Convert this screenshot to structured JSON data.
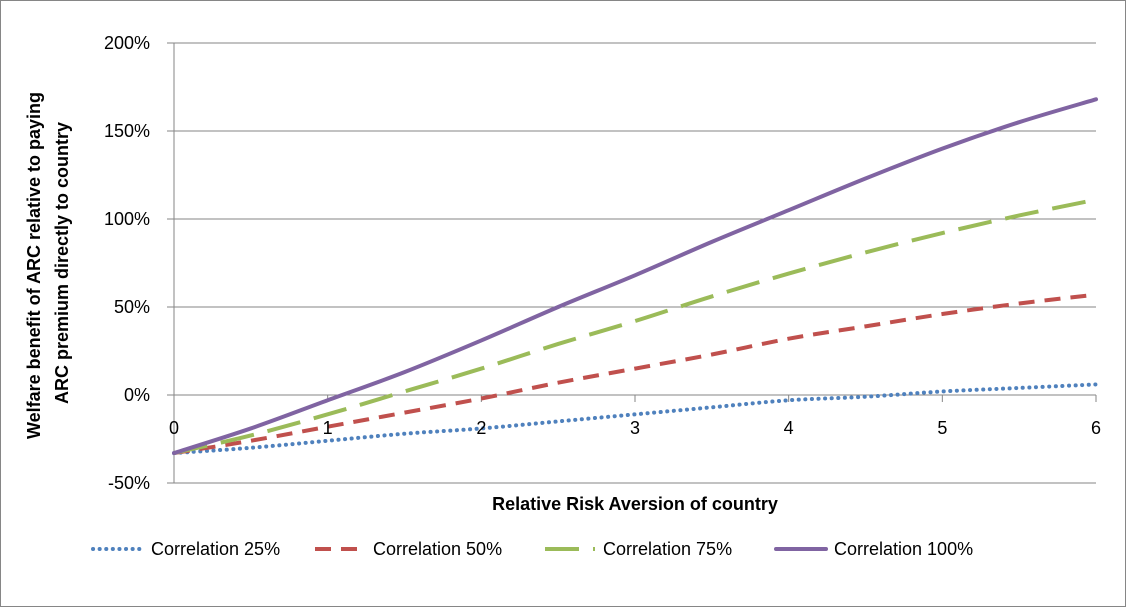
{
  "chart_data": {
    "type": "line",
    "title": "",
    "xlabel": "Relative Risk Aversion of country",
    "ylabel_lines": [
      "Welfare benefit of ARC relative to paying",
      "ARC premium directly to country"
    ],
    "xlim": [
      0,
      6
    ],
    "ylim": [
      -0.5,
      2.0
    ],
    "x_ticks": [
      0,
      1,
      2,
      3,
      4,
      5,
      6
    ],
    "y_ticks": [
      2.0,
      1.5,
      1.0,
      0.5,
      0.0,
      -0.5
    ],
    "y_tick_labels": [
      "200%",
      "150%",
      "100%",
      "50%",
      "0%",
      "-50%"
    ],
    "grid": "horizontal",
    "legend_position": "bottom",
    "x": [
      0,
      0.5,
      1,
      1.5,
      2,
      2.5,
      3,
      3.5,
      4,
      4.5,
      5,
      5.5,
      6
    ],
    "series": [
      {
        "name": "Correlation 25%",
        "color": "#4F81BD",
        "dash": "dotted",
        "values": [
          -0.33,
          -0.3,
          -0.26,
          -0.22,
          -0.19,
          -0.15,
          -0.11,
          -0.07,
          -0.03,
          -0.01,
          0.02,
          0.04,
          0.06
        ]
      },
      {
        "name": "Correlation 50%",
        "color": "#C0504D",
        "dash": "dashed",
        "values": [
          -0.33,
          -0.26,
          -0.18,
          -0.1,
          -0.02,
          0.07,
          0.15,
          0.23,
          0.32,
          0.39,
          0.46,
          0.52,
          0.57
        ]
      },
      {
        "name": "Correlation 75%",
        "color": "#9BBB59",
        "dash": "longdash",
        "values": [
          -0.33,
          -0.23,
          -0.11,
          0.02,
          0.15,
          0.29,
          0.42,
          0.56,
          0.69,
          0.81,
          0.92,
          1.02,
          1.11
        ]
      },
      {
        "name": "Correlation 100%",
        "color": "#8064A2",
        "dash": "solid",
        "values": [
          -0.33,
          -0.19,
          -0.03,
          0.13,
          0.31,
          0.5,
          0.68,
          0.87,
          1.05,
          1.23,
          1.4,
          1.55,
          1.68
        ]
      }
    ]
  }
}
